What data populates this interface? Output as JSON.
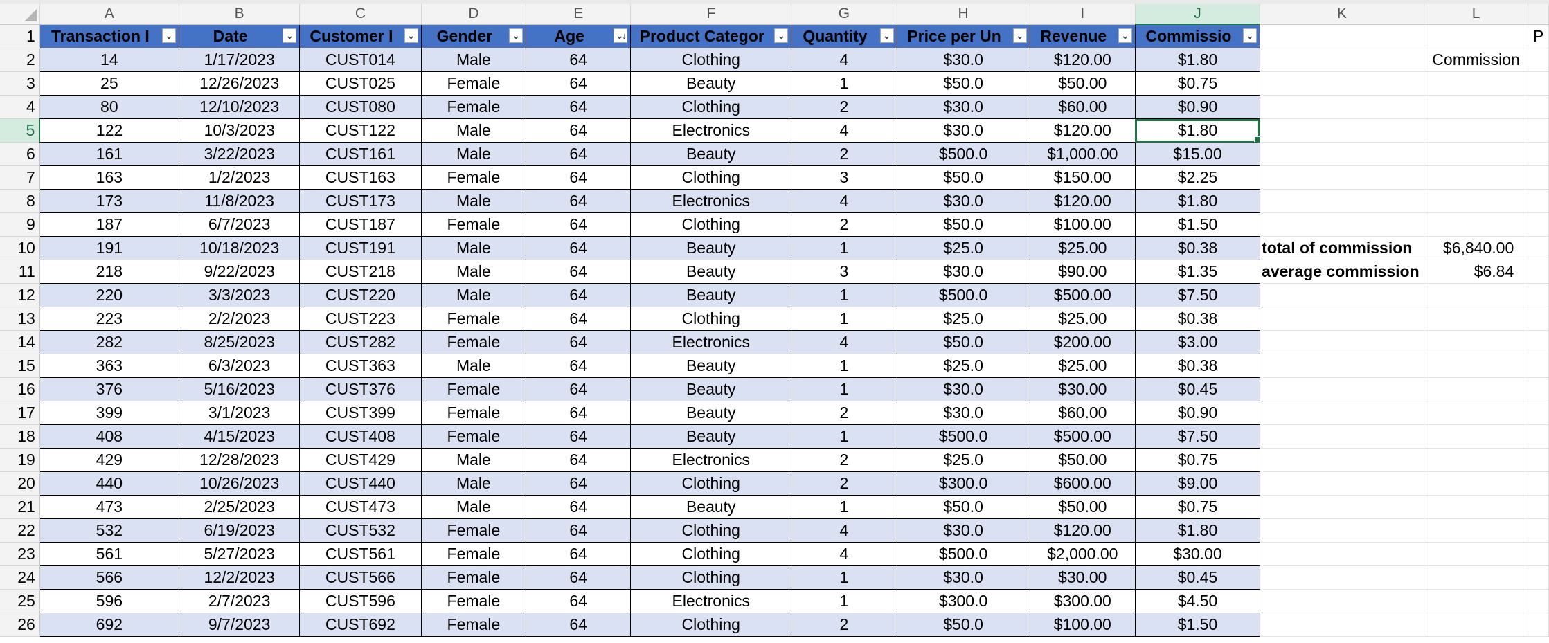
{
  "columns": [
    "A",
    "B",
    "C",
    "D",
    "E",
    "F",
    "G",
    "H",
    "I",
    "J",
    "K",
    "L"
  ],
  "selected_column": "J",
  "selected_row": "5",
  "headers": [
    "Transaction I",
    "Date",
    "Customer I",
    "Gender",
    "Age",
    "Product Categor",
    "Quantity",
    "Price per Un",
    "Revenue",
    "Commissio"
  ],
  "sorted_header_index": 4,
  "rows": [
    {
      "n": "2",
      "cells": [
        "14",
        "1/17/2023",
        "CUST014",
        "Male",
        "64",
        "Clothing",
        "4",
        "$30.0",
        "$120.00",
        "$1.80"
      ]
    },
    {
      "n": "3",
      "cells": [
        "25",
        "12/26/2023",
        "CUST025",
        "Female",
        "64",
        "Beauty",
        "1",
        "$50.0",
        "$50.00",
        "$0.75"
      ]
    },
    {
      "n": "4",
      "cells": [
        "80",
        "12/10/2023",
        "CUST080",
        "Female",
        "64",
        "Clothing",
        "2",
        "$30.0",
        "$60.00",
        "$0.90"
      ]
    },
    {
      "n": "5",
      "cells": [
        "122",
        "10/3/2023",
        "CUST122",
        "Male",
        "64",
        "Electronics",
        "4",
        "$30.0",
        "$120.00",
        "$1.80"
      ]
    },
    {
      "n": "6",
      "cells": [
        "161",
        "3/22/2023",
        "CUST161",
        "Male",
        "64",
        "Beauty",
        "2",
        "$500.0",
        "$1,000.00",
        "$15.00"
      ]
    },
    {
      "n": "7",
      "cells": [
        "163",
        "1/2/2023",
        "CUST163",
        "Female",
        "64",
        "Clothing",
        "3",
        "$50.0",
        "$150.00",
        "$2.25"
      ]
    },
    {
      "n": "8",
      "cells": [
        "173",
        "11/8/2023",
        "CUST173",
        "Male",
        "64",
        "Electronics",
        "4",
        "$30.0",
        "$120.00",
        "$1.80"
      ]
    },
    {
      "n": "9",
      "cells": [
        "187",
        "6/7/2023",
        "CUST187",
        "Female",
        "64",
        "Clothing",
        "2",
        "$50.0",
        "$100.00",
        "$1.50"
      ]
    },
    {
      "n": "10",
      "cells": [
        "191",
        "10/18/2023",
        "CUST191",
        "Male",
        "64",
        "Beauty",
        "1",
        "$25.0",
        "$25.00",
        "$0.38"
      ]
    },
    {
      "n": "11",
      "cells": [
        "218",
        "9/22/2023",
        "CUST218",
        "Male",
        "64",
        "Beauty",
        "3",
        "$30.0",
        "$90.00",
        "$1.35"
      ]
    },
    {
      "n": "12",
      "cells": [
        "220",
        "3/3/2023",
        "CUST220",
        "Male",
        "64",
        "Beauty",
        "1",
        "$500.0",
        "$500.00",
        "$7.50"
      ]
    },
    {
      "n": "13",
      "cells": [
        "223",
        "2/2/2023",
        "CUST223",
        "Female",
        "64",
        "Clothing",
        "1",
        "$25.0",
        "$25.00",
        "$0.38"
      ]
    },
    {
      "n": "14",
      "cells": [
        "282",
        "8/25/2023",
        "CUST282",
        "Female",
        "64",
        "Electronics",
        "4",
        "$50.0",
        "$200.00",
        "$3.00"
      ]
    },
    {
      "n": "15",
      "cells": [
        "363",
        "6/3/2023",
        "CUST363",
        "Male",
        "64",
        "Beauty",
        "1",
        "$25.0",
        "$25.00",
        "$0.38"
      ]
    },
    {
      "n": "16",
      "cells": [
        "376",
        "5/16/2023",
        "CUST376",
        "Female",
        "64",
        "Beauty",
        "1",
        "$30.0",
        "$30.00",
        "$0.45"
      ]
    },
    {
      "n": "17",
      "cells": [
        "399",
        "3/1/2023",
        "CUST399",
        "Female",
        "64",
        "Beauty",
        "2",
        "$30.0",
        "$60.00",
        "$0.90"
      ]
    },
    {
      "n": "18",
      "cells": [
        "408",
        "4/15/2023",
        "CUST408",
        "Female",
        "64",
        "Beauty",
        "1",
        "$500.0",
        "$500.00",
        "$7.50"
      ]
    },
    {
      "n": "19",
      "cells": [
        "429",
        "12/28/2023",
        "CUST429",
        "Male",
        "64",
        "Electronics",
        "2",
        "$25.0",
        "$50.00",
        "$0.75"
      ]
    },
    {
      "n": "20",
      "cells": [
        "440",
        "10/26/2023",
        "CUST440",
        "Male",
        "64",
        "Clothing",
        "2",
        "$300.0",
        "$600.00",
        "$9.00"
      ]
    },
    {
      "n": "21",
      "cells": [
        "473",
        "2/25/2023",
        "CUST473",
        "Male",
        "64",
        "Beauty",
        "1",
        "$50.0",
        "$50.00",
        "$0.75"
      ]
    },
    {
      "n": "22",
      "cells": [
        "532",
        "6/19/2023",
        "CUST532",
        "Female",
        "64",
        "Clothing",
        "4",
        "$30.0",
        "$120.00",
        "$1.80"
      ]
    },
    {
      "n": "23",
      "cells": [
        "561",
        "5/27/2023",
        "CUST561",
        "Female",
        "64",
        "Clothing",
        "4",
        "$500.0",
        "$2,000.00",
        "$30.00"
      ]
    },
    {
      "n": "24",
      "cells": [
        "566",
        "12/2/2023",
        "CUST566",
        "Female",
        "64",
        "Clothing",
        "1",
        "$30.0",
        "$30.00",
        "$0.45"
      ]
    },
    {
      "n": "25",
      "cells": [
        "596",
        "2/7/2023",
        "CUST596",
        "Female",
        "64",
        "Electronics",
        "1",
        "$300.0",
        "$300.00",
        "$4.50"
      ]
    },
    {
      "n": "26",
      "cells": [
        "692",
        "9/7/2023",
        "CUST692",
        "Female",
        "64",
        "Clothing",
        "2",
        "$50.0",
        "$100.00",
        "$1.50"
      ]
    }
  ],
  "side": {
    "row1_partial": "P",
    "commission_label": "Commission",
    "total_label": "total of commission",
    "total_value": "$6,840.00",
    "average_label": "average commission",
    "average_value": "$6.84"
  },
  "colors": {
    "header_blue": "#4472c4",
    "band_blue": "#d9e1f2",
    "select_green": "#217346"
  }
}
